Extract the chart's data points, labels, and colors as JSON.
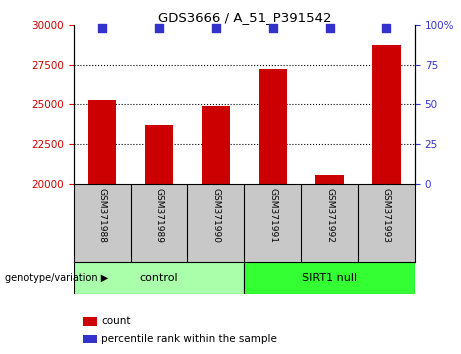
{
  "title": "GDS3666 / A_51_P391542",
  "samples": [
    "GSM371988",
    "GSM371989",
    "GSM371990",
    "GSM371991",
    "GSM371992",
    "GSM371993"
  ],
  "count_values": [
    25300,
    23700,
    24900,
    27200,
    20600,
    28700
  ],
  "percentile_values": [
    98,
    98,
    98,
    98,
    98,
    98
  ],
  "ylim_left": [
    20000,
    30000
  ],
  "ylim_right": [
    0,
    100
  ],
  "yticks_left": [
    20000,
    22500,
    25000,
    27500,
    30000
  ],
  "yticks_right": [
    0,
    25,
    50,
    75,
    100
  ],
  "ytick_right_labels": [
    "0",
    "25",
    "50",
    "75",
    "100%"
  ],
  "bar_color": "#CC0000",
  "dot_color": "#3333CC",
  "groups": [
    {
      "label": "control",
      "indices": [
        0,
        1,
        2
      ],
      "color": "#AAFFAA"
    },
    {
      "label": "SIRT1 null",
      "indices": [
        3,
        4,
        5
      ],
      "color": "#33FF33"
    }
  ],
  "group_label": "genotype/variation",
  "legend_count_label": "count",
  "legend_pct_label": "percentile rank within the sample",
  "grid_color": "black",
  "left_tick_color": "#CC0000",
  "right_tick_color": "#3333CC",
  "bar_width": 0.5,
  "dot_size": 30,
  "sample_bg_color": "#C8C8C8"
}
